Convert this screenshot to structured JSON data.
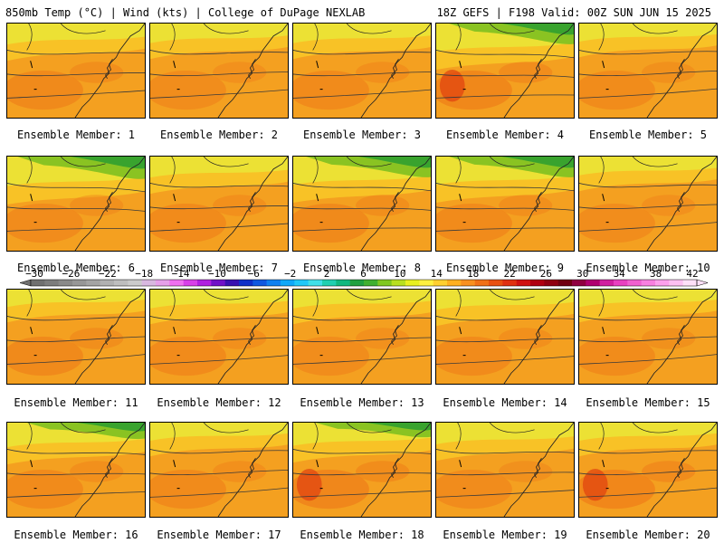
{
  "header": {
    "left": "850mb Temp (°C) | Wind (kts) | College of DuPage NEXLAB",
    "right": "18Z GEFS | F198 Valid: 00Z SUN JUN 15 2025"
  },
  "caption_prefix": "Ensemble Member:",
  "members": [
    {
      "label": "Ensemble Member: 1"
    },
    {
      "label": "Ensemble Member: 2"
    },
    {
      "label": "Ensemble Member: 3"
    },
    {
      "label": "Ensemble Member: 4"
    },
    {
      "label": "Ensemble Member: 5"
    },
    {
      "label": "Ensemble Member: 6"
    },
    {
      "label": "Ensemble Member: 7"
    },
    {
      "label": "Ensemble Member: 8"
    },
    {
      "label": "Ensemble Member: 9"
    },
    {
      "label": "Ensemble Member: 10"
    },
    {
      "label": "Ensemble Member: 11"
    },
    {
      "label": "Ensemble Member: 12"
    },
    {
      "label": "Ensemble Member: 13"
    },
    {
      "label": "Ensemble Member: 14"
    },
    {
      "label": "Ensemble Member: 15"
    },
    {
      "label": "Ensemble Member: 16"
    },
    {
      "label": "Ensemble Member: 17"
    },
    {
      "label": "Ensemble Member: 18"
    },
    {
      "label": "Ensemble Member: 19"
    },
    {
      "label": "Ensemble Member: 20"
    }
  ],
  "colorbar": {
    "tick_labels": [
      "−30",
      "−26",
      "−22",
      "−18",
      "−14",
      "−10",
      "−6",
      "−2",
      "2",
      "6",
      "10",
      "14",
      "18",
      "22",
      "26",
      "30",
      "34",
      "38",
      "42"
    ],
    "colors": [
      "#707070",
      "#7d7d7d",
      "#8a8a8a",
      "#979797",
      "#a4a4a4",
      "#b1b1b1",
      "#bebebe",
      "#cbcbcb",
      "#d8b8e0",
      "#e6a0ea",
      "#f070f0",
      "#d840e8",
      "#b020e0",
      "#7010c8",
      "#3810b0",
      "#1030c8",
      "#1058e0",
      "#1080f0",
      "#10a8f8",
      "#20c8f8",
      "#40e0e8",
      "#20d0b0",
      "#10b880",
      "#20a040",
      "#40b030",
      "#80c820",
      "#b8e020",
      "#e8f020",
      "#fff040",
      "#ffd030",
      "#ffb020",
      "#f89020",
      "#f07018",
      "#e85010",
      "#e03010",
      "#d01010",
      "#b00010",
      "#900010",
      "#700010",
      "#900040",
      "#b00070",
      "#d020a0",
      "#e840c0",
      "#f060d0",
      "#f880e0",
      "#fca0ec",
      "#fdc0f2",
      "#fee0f8"
    ]
  }
}
